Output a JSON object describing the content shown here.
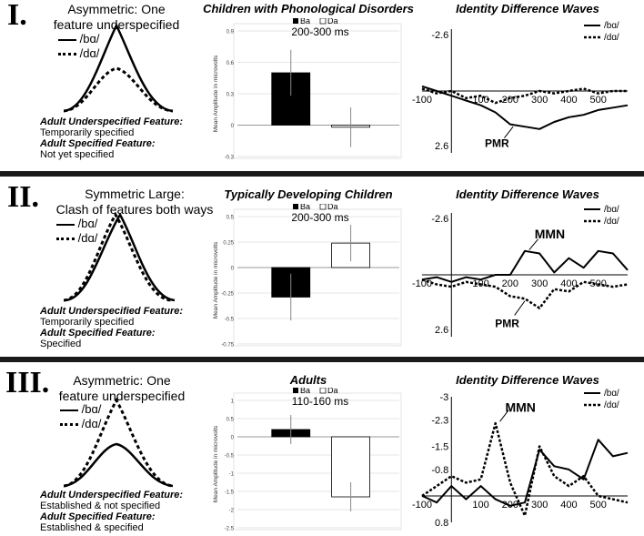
{
  "panels": [
    {
      "roman": "I.",
      "title_lines": [
        "Asymmetric: One",
        "feature underspecified"
      ],
      "legend": {
        "solid": "/bɑ/",
        "dotted": "/dɑ/"
      },
      "adult_underspecified_label": "Adult Underspecified Feature:",
      "adult_underspecified_value": "Temporarily specified",
      "adult_specified_label": "Adult Specified Feature:",
      "adult_specified_value": "Not yet specified",
      "bar_title": "Children with Phonological Disorders",
      "bar_legend": {
        "ba": "Ba",
        "da": "Da"
      },
      "bar_window": "200-300 ms",
      "ylabel": "Mean Amplitude in microvolts",
      "wave_title": "Identity Difference Waves",
      "wave_legend": {
        "solid": "/bɑ/",
        "dotted": "/dɑ/"
      },
      "annotations": [
        "PMR"
      ]
    },
    {
      "roman": "II.",
      "title_lines": [
        "Symmetric Large:",
        "Clash of features both ways"
      ],
      "legend": {
        "solid": "/bɑ/",
        "dotted": "/dɑ/"
      },
      "adult_underspecified_label": "Adult Underspecified Feature:",
      "adult_underspecified_value": "Temporarily specified",
      "adult_specified_label": "Adult Specified Feature:",
      "adult_specified_value": "Specified",
      "bar_title": "Typically Developing Children",
      "bar_legend": {
        "ba": "Ba",
        "da": "Da"
      },
      "bar_window": "200-300 ms",
      "ylabel": "Mean Amplitude in microvolts",
      "wave_title": "Identity Difference Waves",
      "wave_legend": {
        "solid": "/bɑ/",
        "dotted": "/dɑ/"
      },
      "annotations": [
        "MMN",
        "PMR"
      ]
    },
    {
      "roman": "III.",
      "title_lines": [
        "Asymmetric: One",
        "feature underspecified"
      ],
      "legend": {
        "solid": "/bɑ/",
        "dotted": "/dɑ/"
      },
      "adult_underspecified_label": "Adult Underspecified Feature:",
      "adult_underspecified_value": "Established & not specified",
      "adult_specified_label": "Adult Specified Feature:",
      "adult_specified_value": "Established & specified",
      "bar_title": "Adults",
      "bar_legend": {
        "ba": "Ba",
        "da": "Da"
      },
      "bar_window": "110-160 ms",
      "ylabel": "Mean Amplitude in microvolts",
      "wave_title": "Identity Difference Waves",
      "wave_legend": {
        "solid": "/bɑ/",
        "dotted": "/dɑ/"
      },
      "annotations": [
        "MMN"
      ]
    }
  ],
  "chart_data": [
    {
      "type": "bar",
      "panel": "I",
      "title": "Children with Phonological Disorders",
      "window": "200-300 ms",
      "categories": [
        "Ba",
        "Da"
      ],
      "values": [
        0.5,
        -0.02
      ],
      "errors": [
        0.22,
        0.19
      ],
      "ylabel": "Mean Amplitude in microvolts",
      "ylim": [
        -0.3,
        0.9
      ],
      "ticks": [
        0.9,
        0.6,
        0.3,
        0,
        -0.3
      ],
      "tick_labels": [
        "0.9",
        "0.6",
        "0.3",
        "0",
        "-0.3"
      ]
    },
    {
      "type": "bar",
      "panel": "II",
      "title": "Typically Developing Children",
      "window": "200-300 ms",
      "categories": [
        "Ba",
        "Da"
      ],
      "values": [
        -0.29,
        0.24
      ],
      "errors": [
        0.23,
        0.18
      ],
      "ylabel": "Mean Amplitude in microvolts",
      "ylim": [
        -0.75,
        0.5
      ],
      "ticks": [
        0.5,
        0.25,
        0,
        -0.25,
        -0.5,
        -0.75
      ],
      "tick_labels": [
        "0.5",
        "0.25",
        "0",
        "-0.25",
        "-0.5",
        "-0.75"
      ]
    },
    {
      "type": "bar",
      "panel": "III",
      "title": "Adults",
      "window": "110-160 ms",
      "categories": [
        "Ba",
        "Da"
      ],
      "values": [
        0.2,
        -1.65
      ],
      "errors": [
        0.4,
        0.4
      ],
      "ylabel": "Mean Amplitude in microvolts",
      "ylim": [
        -2.5,
        1
      ],
      "ticks": [
        1,
        0.5,
        0,
        -0.5,
        -1,
        -1.5,
        -2,
        -2.5
      ],
      "tick_labels": [
        "1",
        "0.5",
        "0",
        "-0.5",
        "-1",
        "-1.5",
        "-2",
        "-2.5"
      ]
    },
    {
      "type": "line",
      "panel": "I",
      "title": "Identity Difference Waves",
      "ylim": [
        -2.6,
        2.6
      ],
      "inverted": true,
      "ytick_labels": [
        "-2.6",
        "2.6"
      ],
      "xtick_values": [
        -100,
        100,
        200,
        300,
        400,
        500
      ],
      "xtick_labels": [
        "-100",
        "100",
        "200",
        "300",
        "400",
        "500"
      ],
      "x": [
        -100,
        -50,
        0,
        50,
        100,
        150,
        200,
        250,
        300,
        350,
        400,
        450,
        500,
        550,
        600
      ],
      "series": [
        {
          "name": "/bɑ/",
          "values": [
            -0.2,
            0.0,
            0.2,
            0.4,
            0.6,
            0.9,
            1.4,
            1.5,
            1.6,
            1.3,
            1.1,
            1.0,
            0.8,
            0.7,
            0.6
          ]
        },
        {
          "name": "/dɑ/",
          "values": [
            -0.1,
            0.1,
            0.0,
            0.3,
            0.2,
            0.5,
            0.3,
            0.2,
            0.0,
            0.1,
            0.0,
            -0.1,
            0.1,
            0.0,
            0.0
          ]
        }
      ],
      "annotations": [
        "PMR"
      ]
    },
    {
      "type": "line",
      "panel": "II",
      "title": "Identity Difference Waves",
      "ylim": [
        -2.6,
        2.6
      ],
      "inverted": true,
      "ytick_labels": [
        "-2.6",
        "2.6"
      ],
      "xtick_values": [
        -100,
        100,
        200,
        300,
        400,
        500
      ],
      "xtick_labels": [
        "-100",
        "100",
        "200",
        "300",
        "400",
        "500"
      ],
      "x": [
        -100,
        -50,
        0,
        50,
        100,
        150,
        200,
        250,
        300,
        350,
        400,
        450,
        500,
        550,
        600
      ],
      "series": [
        {
          "name": "/bɑ/",
          "values": [
            0.2,
            0.1,
            0.3,
            0.1,
            0.2,
            0.0,
            0.0,
            -1.0,
            -0.9,
            -0.1,
            -0.7,
            -0.3,
            -1.0,
            -0.9,
            -0.2
          ]
        },
        {
          "name": "/dɑ/",
          "values": [
            0.2,
            0.4,
            0.5,
            0.3,
            0.4,
            0.5,
            0.9,
            1.0,
            1.4,
            0.6,
            0.7,
            0.3,
            0.4,
            0.5,
            0.4
          ]
        }
      ],
      "annotations": [
        "MMN",
        "PMR"
      ]
    },
    {
      "type": "line",
      "panel": "III",
      "title": "Identity Difference Waves",
      "ylim": [
        -3,
        0.8
      ],
      "inverted": true,
      "ytick_values": [
        -3,
        -2.3,
        -1.5,
        -0.8,
        0.8
      ],
      "ytick_labels": [
        "-3",
        "-2.3",
        "-1.5",
        "-0.8",
        "0.8"
      ],
      "xtick_values": [
        -100,
        100,
        200,
        300,
        400,
        500
      ],
      "xtick_labels": [
        "-100",
        "100",
        "200",
        "300",
        "400",
        "500"
      ],
      "x": [
        -100,
        -50,
        0,
        50,
        100,
        150,
        200,
        250,
        300,
        350,
        400,
        450,
        500,
        550,
        600
      ],
      "series": [
        {
          "name": "/bɑ/",
          "values": [
            0.0,
            0.2,
            -0.3,
            0.1,
            -0.3,
            0.1,
            0.3,
            0.2,
            -1.4,
            -0.9,
            -0.8,
            -0.5,
            -1.7,
            -1.2,
            -1.3
          ]
        },
        {
          "name": "/dɑ/",
          "values": [
            0.0,
            -0.3,
            -0.6,
            -0.4,
            -0.5,
            -2.2,
            -0.4,
            0.6,
            -1.5,
            -0.6,
            -0.3,
            -0.6,
            0.0,
            0.1,
            0.2
          ]
        }
      ],
      "annotations": [
        "MMN"
      ]
    }
  ]
}
